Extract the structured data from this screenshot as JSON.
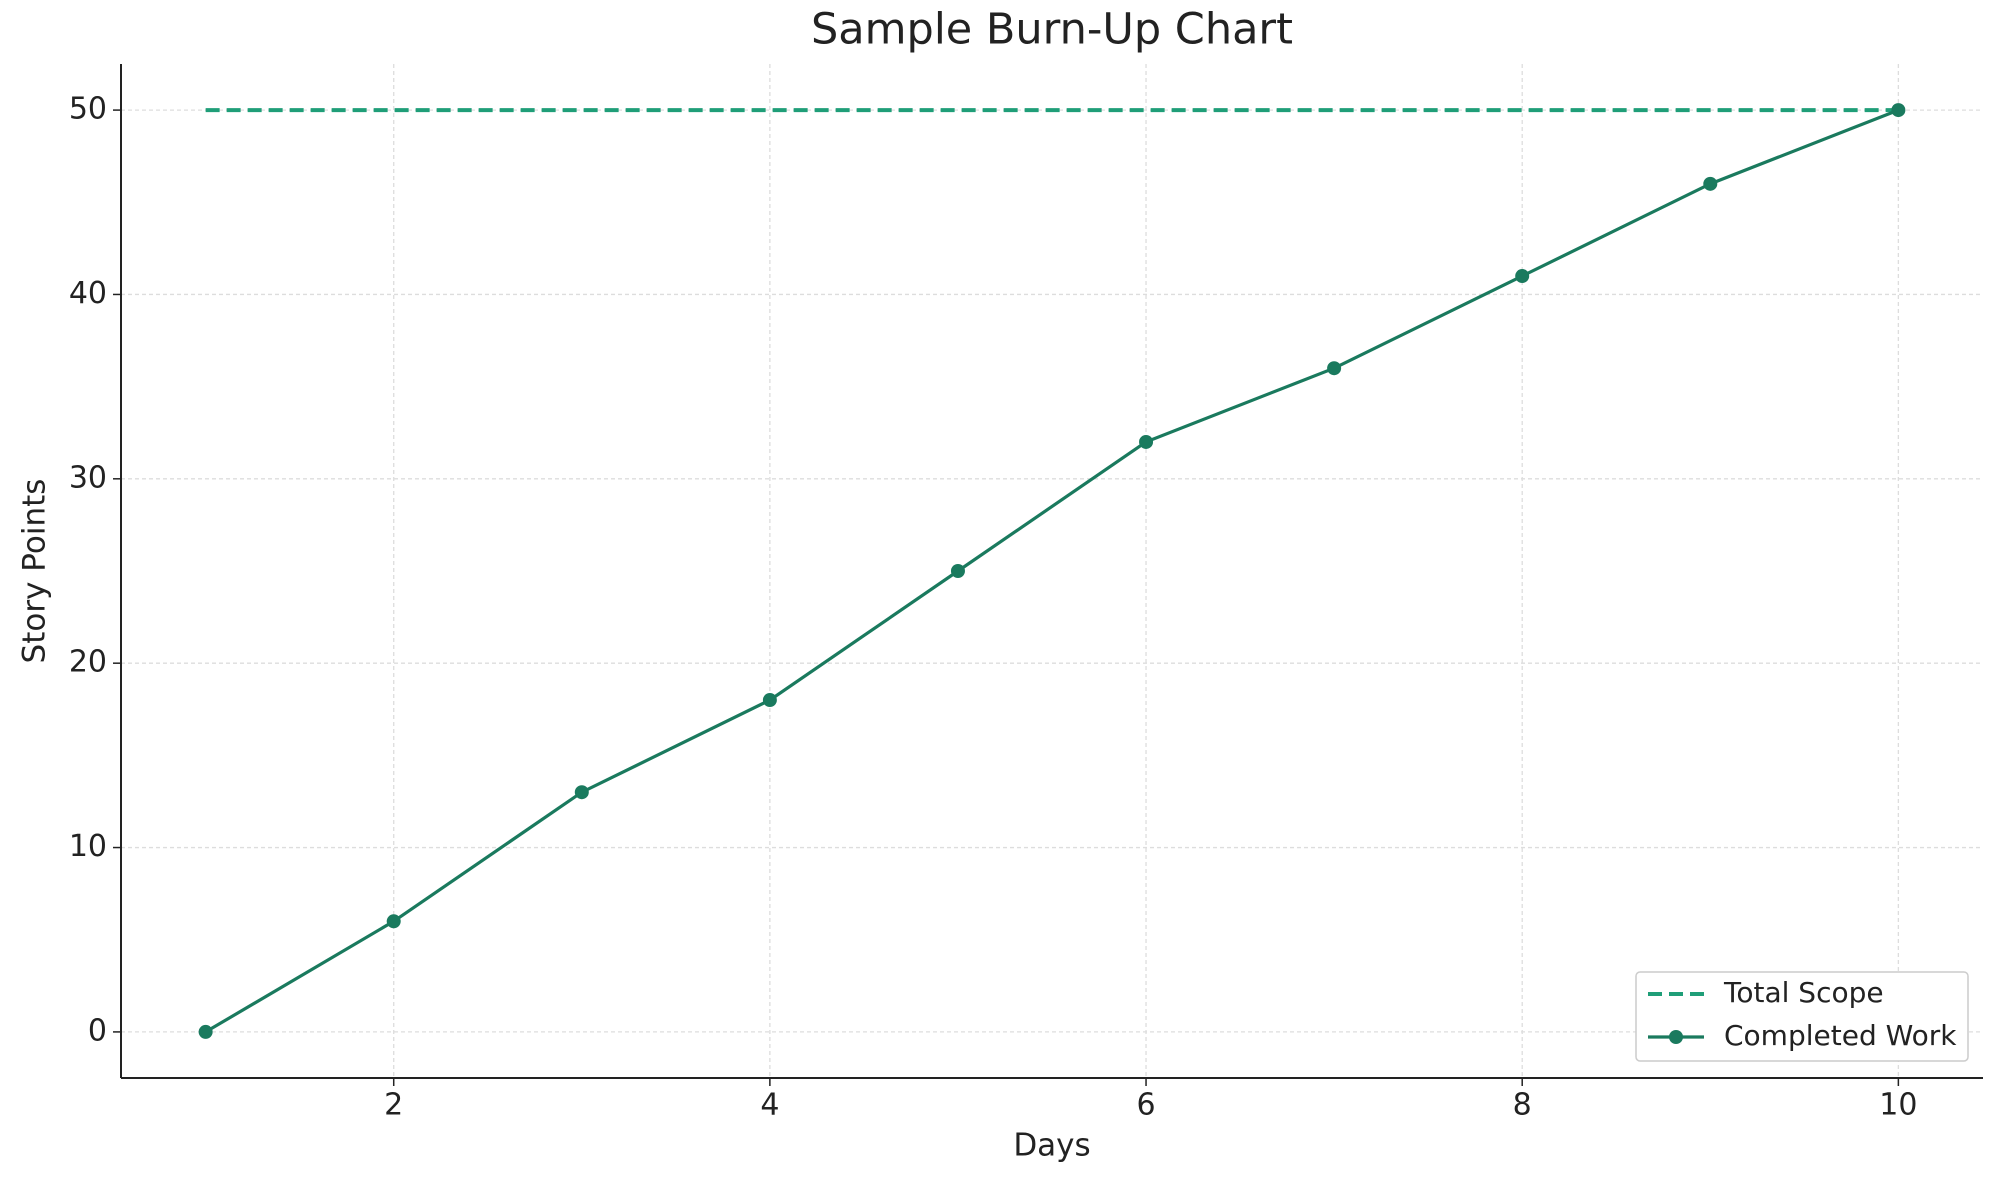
{
  "chart_data": {
    "type": "line",
    "title": "Sample Burn-Up Chart",
    "x_label": "Days",
    "y_label": "Story Points",
    "x": [
      1,
      2,
      3,
      4,
      5,
      6,
      7,
      8,
      9,
      10
    ],
    "series": [
      {
        "name": "Total Scope",
        "color": "#1f9e78",
        "dashed": true,
        "markers": false,
        "values": [
          50,
          50,
          50,
          50,
          50,
          50,
          50,
          50,
          50,
          50
        ]
      },
      {
        "name": "Completed Work",
        "color": "#1a7a5e",
        "dashed": false,
        "markers": true,
        "values": [
          0,
          6,
          13,
          18,
          25,
          32,
          36,
          41,
          46,
          50
        ]
      }
    ],
    "xlim": [
      0.55,
      10.45
    ],
    "ylim": [
      -2.5,
      52.5
    ],
    "xticks": [
      2,
      4,
      6,
      8,
      10
    ],
    "yticks": [
      0,
      10,
      20,
      30,
      40,
      50
    ],
    "grid": true,
    "legend": "lower right"
  }
}
